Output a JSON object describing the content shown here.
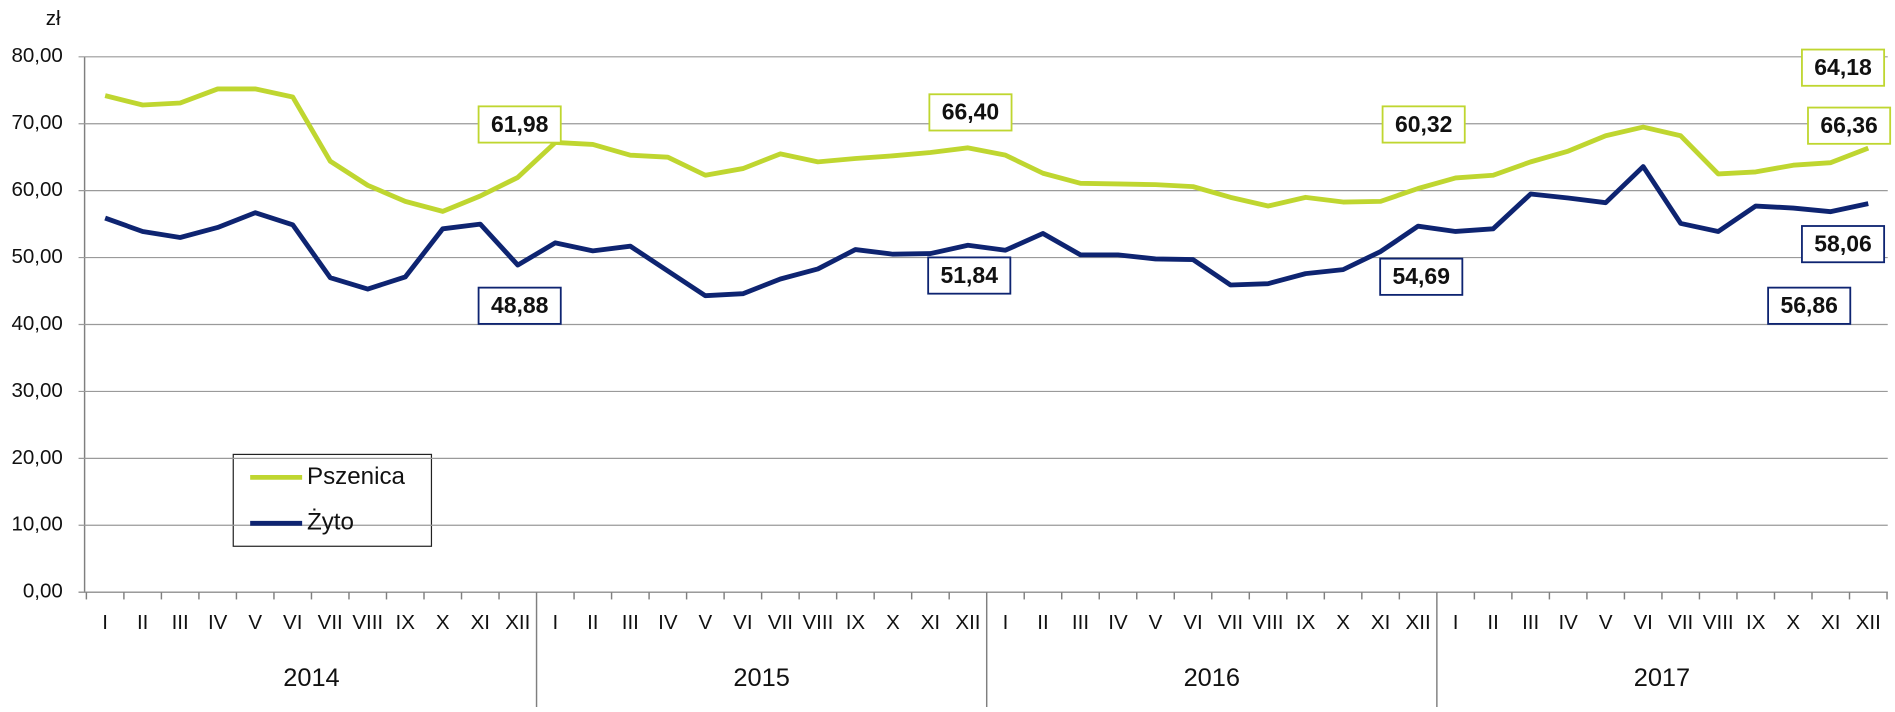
{
  "chart_data": {
    "type": "line",
    "y_unit": "zł",
    "categories": [
      "I",
      "II",
      "III",
      "IV",
      "V",
      "VI",
      "VII",
      "VIII",
      "IX",
      "X",
      "XI",
      "XII",
      "I",
      "II",
      "III",
      "IV",
      "V",
      "VI",
      "VII",
      "VIII",
      "IX",
      "X",
      "XI",
      "XII",
      "I",
      "II",
      "III",
      "IV",
      "V",
      "VI",
      "VII",
      "VIII",
      "IX",
      "X",
      "XI",
      "XII",
      "I",
      "II",
      "III",
      "IV",
      "V",
      "VI",
      "VII",
      "VIII",
      "IX",
      "X",
      "XI",
      "XII"
    ],
    "years": [
      "2014",
      "2015",
      "2016",
      "2017"
    ],
    "ylim": [
      0,
      80
    ],
    "yticks": [
      {
        "value": 0,
        "label": "0,00"
      },
      {
        "value": 10,
        "label": "10,00"
      },
      {
        "value": 20,
        "label": "20,00"
      },
      {
        "value": 30,
        "label": "30,00"
      },
      {
        "value": 40,
        "label": "40,00"
      },
      {
        "value": 50,
        "label": "50,00"
      },
      {
        "value": 60,
        "label": "60,00"
      },
      {
        "value": 70,
        "label": "70,00"
      },
      {
        "value": 80,
        "label": "80,00"
      }
    ],
    "grid": true,
    "legend": "lower-left",
    "series": [
      {
        "name": "Pszenica",
        "color": "#bfd630",
        "values": [
          74.2,
          72.8,
          73.1,
          75.2,
          75.2,
          74.0,
          64.4,
          60.8,
          58.4,
          56.9,
          59.2,
          61.98,
          67.2,
          66.9,
          65.3,
          65.0,
          62.3,
          63.3,
          65.5,
          64.3,
          64.8,
          65.2,
          65.7,
          66.4,
          65.3,
          62.6,
          61.1,
          61.0,
          60.9,
          60.6,
          59.0,
          57.7,
          59.0,
          58.3,
          58.4,
          60.32,
          61.9,
          62.3,
          64.3,
          65.9,
          68.2,
          69.5,
          68.2,
          62.5,
          62.8,
          63.8,
          64.18,
          66.36
        ],
        "value_labels": [
          null,
          null,
          null,
          null,
          null,
          null,
          null,
          null,
          null,
          null,
          null,
          "61,98",
          null,
          null,
          null,
          null,
          null,
          null,
          null,
          null,
          null,
          null,
          null,
          "66,40",
          null,
          null,
          null,
          null,
          null,
          null,
          null,
          null,
          null,
          null,
          null,
          "60,32",
          null,
          null,
          null,
          null,
          null,
          null,
          null,
          null,
          null,
          null,
          "64,18",
          "66,36"
        ]
      },
      {
        "name": "Żyto",
        "color": "#0e2471",
        "values": [
          55.9,
          53.9,
          53.0,
          54.5,
          56.7,
          54.9,
          47.0,
          45.3,
          47.1,
          54.3,
          55.0,
          48.88,
          52.2,
          51.0,
          51.7,
          48.0,
          44.3,
          44.6,
          46.8,
          48.3,
          51.2,
          50.5,
          50.6,
          51.84,
          51.1,
          53.6,
          50.4,
          50.4,
          49.8,
          49.7,
          45.9,
          46.1,
          47.6,
          48.2,
          50.9,
          54.69,
          53.9,
          54.3,
          59.5,
          58.9,
          58.2,
          63.6,
          55.1,
          53.9,
          57.7,
          57.4,
          56.86,
          58.06
        ],
        "value_labels": [
          null,
          null,
          null,
          null,
          null,
          null,
          null,
          null,
          null,
          null,
          null,
          "48,88",
          null,
          null,
          null,
          null,
          null,
          null,
          null,
          null,
          null,
          null,
          null,
          "51,84",
          null,
          null,
          null,
          null,
          null,
          null,
          null,
          null,
          null,
          null,
          null,
          "54,69",
          null,
          null,
          null,
          null,
          null,
          null,
          null,
          null,
          null,
          null,
          "56,86",
          "58,06"
        ]
      }
    ]
  }
}
